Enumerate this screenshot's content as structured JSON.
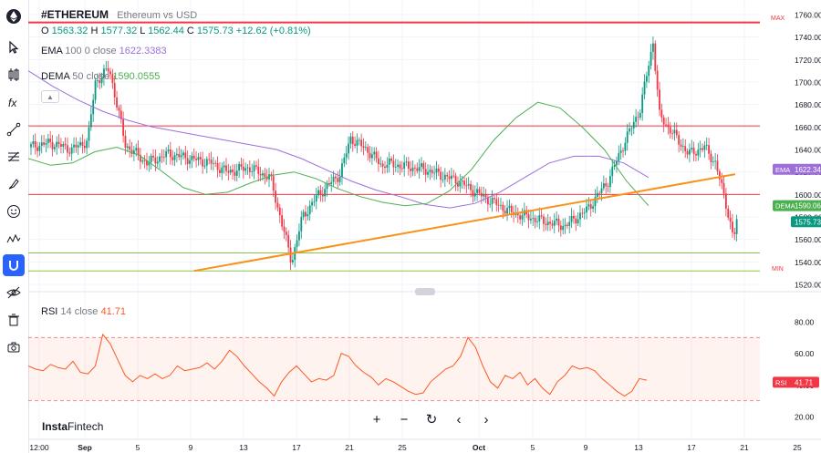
{
  "header": {
    "symbol": "#ETHEREUM",
    "description": "Ethereum vs USD",
    "ohlc": {
      "o_label": "O",
      "o": "1563.32",
      "h_label": "H",
      "h": "1577.32",
      "l_label": "L",
      "l": "1562.44",
      "c_label": "C",
      "c": "1575.73",
      "change": "+12.62 (+0.81%)"
    },
    "ema": {
      "name": "EMA",
      "length": "100",
      "offset": "0",
      "source": "close",
      "value": "1622.3383"
    },
    "dema": {
      "name": "DEMA",
      "length": "50",
      "source": "close",
      "value": "1590.0555"
    },
    "rsi": {
      "name": "RSI",
      "length": "14",
      "source": "close",
      "value": "41.71"
    }
  },
  "markers": {
    "max": "MAX",
    "min": "MIN"
  },
  "price_tags": {
    "ema": {
      "label": "EMA",
      "value": "1622.34"
    },
    "dema": {
      "label": "DEMA",
      "value": "1590.06"
    },
    "last": {
      "value": "1575.73"
    },
    "rsi": {
      "label": "RSI",
      "value": "41.71"
    }
  },
  "brand": {
    "name_a": "Insta",
    "name_b": "Fintech"
  },
  "colors": {
    "up": "#089981",
    "down": "#f23645",
    "ema": "#9c6fdb",
    "dema": "#4caf50",
    "trendline": "#f7931a",
    "rsi": "#ff5722",
    "resistance": "#f23645",
    "support": "#8bc34a"
  },
  "chart_data": [
    {
      "type": "candlestick",
      "title": "#ETHEREUM Ethereum vs USD",
      "y_ticks": [
        "1760.00",
        "1740.00",
        "1720.00",
        "1700.00",
        "1680.00",
        "1660.00",
        "1640.00",
        "1620.00",
        "1600.00",
        "1580.00",
        "1560.00",
        "1540.00",
        "1520.00"
      ],
      "ylim": [
        1513,
        1765
      ],
      "x_ticks": [
        "12:00",
        "Sep",
        "5",
        "9",
        "13",
        "17",
        "21",
        "25",
        "Oct",
        "5",
        "9",
        "13",
        "17",
        "21",
        "25"
      ],
      "horizontal_lines": [
        {
          "value": 1753,
          "color": "#f23645"
        },
        {
          "value": 1661,
          "color": "#f23645"
        },
        {
          "value": 1600,
          "color": "#f23645"
        },
        {
          "value": 1548,
          "color": "#8bc34a"
        },
        {
          "value": 1532,
          "color": "#8bc34a"
        }
      ],
      "trendline": [
        {
          "index": 50,
          "value": 1532
        },
        {
          "index": 155,
          "value": 1620
        }
      ],
      "series": [
        {
          "name": "EMA 100",
          "values": [
            1710,
            1696,
            1684,
            1674,
            1666,
            1660,
            1656,
            1652,
            1648,
            1644,
            1640,
            1632,
            1622,
            1612,
            1604,
            1598,
            1591,
            1588,
            1592,
            1602,
            1615,
            1628,
            1634,
            1634,
            1628,
            1615
          ]
        },
        {
          "name": "DEMA 50",
          "values": [
            1632,
            1626,
            1628,
            1638,
            1642,
            1635,
            1621,
            1606,
            1600,
            1602,
            1610,
            1617,
            1620,
            1614,
            1605,
            1598,
            1593,
            1590,
            1592,
            1603,
            1622,
            1648,
            1668,
            1682,
            1677,
            1660,
            1640,
            1612,
            1590
          ]
        }
      ]
    },
    {
      "type": "line",
      "title": "RSI 14 close",
      "y_ticks": [
        "80.00",
        "60.00",
        "40.00",
        "20.00"
      ],
      "ylim": [
        15,
        85
      ],
      "bands": [
        70,
        30
      ],
      "series": [
        {
          "name": "RSI",
          "values": [
            52,
            50,
            49,
            53,
            51,
            50,
            55,
            48,
            47,
            52,
            72,
            66,
            56,
            46,
            42,
            46,
            44,
            47,
            44,
            46,
            52,
            49,
            50,
            51,
            54,
            50,
            55,
            62,
            58,
            52,
            47,
            42,
            38,
            33,
            42,
            48,
            52,
            47,
            42,
            44,
            43,
            46,
            60,
            58,
            52,
            48,
            45,
            40,
            44,
            42,
            39,
            36,
            34,
            35,
            42,
            46,
            50,
            52,
            58,
            70,
            64,
            52,
            42,
            38,
            46,
            44,
            48,
            40,
            44,
            38,
            34,
            42,
            46,
            52,
            50,
            51,
            49,
            44,
            40,
            36,
            33,
            36,
            44,
            43
          ]
        }
      ]
    }
  ]
}
